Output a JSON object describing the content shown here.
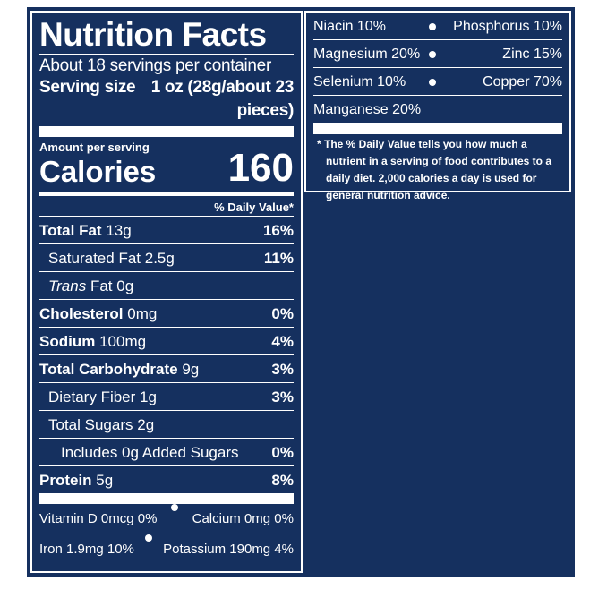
{
  "header": {
    "title": "Nutrition Facts",
    "servings": "About 18 servings per container",
    "serving_size_label": "Serving size",
    "serving_size_value": "1 oz (28g/about 23 pieces)"
  },
  "calories": {
    "amount_label": "Amount per serving",
    "label": "Calories",
    "value": "160"
  },
  "daily_value_header": "% Daily Value*",
  "nutrients": [
    {
      "name": "Total Fat",
      "amount": "13g",
      "dv": "16%"
    },
    {
      "name": "Saturated Fat",
      "amount": "2.5g",
      "dv": "11%"
    },
    {
      "prefix": "Trans",
      "name": "Fat",
      "amount": "0g"
    },
    {
      "name": "Cholesterol",
      "amount": "0mg",
      "dv": "0%"
    },
    {
      "name": "Sodium",
      "amount": "100mg",
      "dv": "4%"
    },
    {
      "name": "Total Carbohydrate",
      "amount": "9g",
      "dv": "3%"
    },
    {
      "name": "Dietary Fiber",
      "amount": "1g",
      "dv": "3%"
    },
    {
      "name": "Total Sugars",
      "amount": "2g"
    },
    {
      "name": "Includes 0g Added Sugars",
      "dv": "0%"
    },
    {
      "name": "Protein",
      "amount": "5g",
      "dv": "8%"
    }
  ],
  "vitamins": [
    [
      "Vitamin D 0mcg 0%",
      "Calcium 0mg 0%"
    ],
    [
      "Iron 1.9mg 10%",
      "Potassium 190mg 4%"
    ]
  ],
  "minerals": [
    [
      "Niacin 10%",
      "Phosphorus 10%"
    ],
    [
      "Magnesium 20%",
      "Zinc 15%"
    ],
    [
      "Selenium 10%",
      "Copper 70%"
    ],
    [
      "Manganese 20%"
    ]
  ],
  "footnote": "* The % Daily Value tells you how much a nutrient in a serving of food contributes to a daily diet. 2,000 calories a day is used for general nutrition advice."
}
